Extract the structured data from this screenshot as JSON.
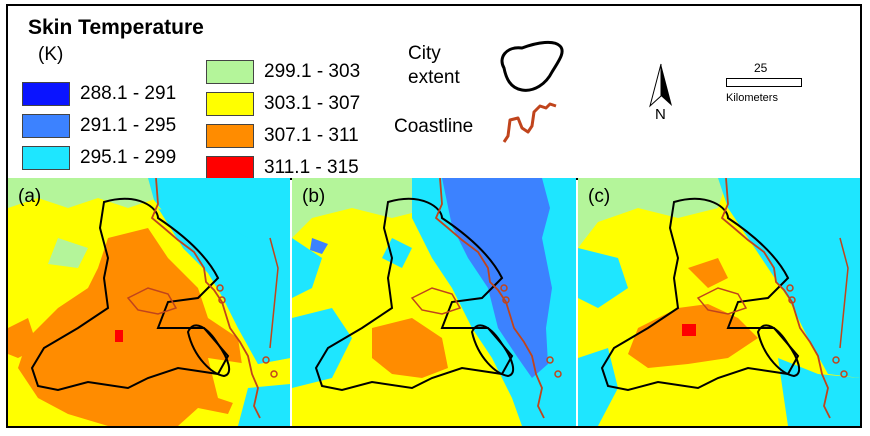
{
  "legend": {
    "title": "Skin Temperature",
    "unit": "(K)",
    "classes": [
      {
        "range": "288.1 - 291",
        "color": "#0a14ff"
      },
      {
        "range": "291.1 - 295",
        "color": "#3c82ff"
      },
      {
        "range": "295.1 - 299",
        "color": "#1ee6ff"
      },
      {
        "range": "299.1 - 303",
        "color": "#b4f59a"
      },
      {
        "range": "303.1 - 307",
        "color": "#ffff00"
      },
      {
        "range": "307.1 - 311",
        "color": "#ff8c00"
      },
      {
        "range": "311.1 - 315",
        "color": "#ff0000"
      }
    ],
    "city_label": "City\nextent",
    "coastline_label": "Coastline",
    "city_color": "#000000",
    "coastline_color": "#c0441c",
    "scale_value": "25",
    "scale_unit": "Kilometers",
    "north": "N"
  },
  "panels": [
    {
      "label": "(a)"
    },
    {
      "label": "(b)"
    },
    {
      "label": "(c)"
    }
  ]
}
